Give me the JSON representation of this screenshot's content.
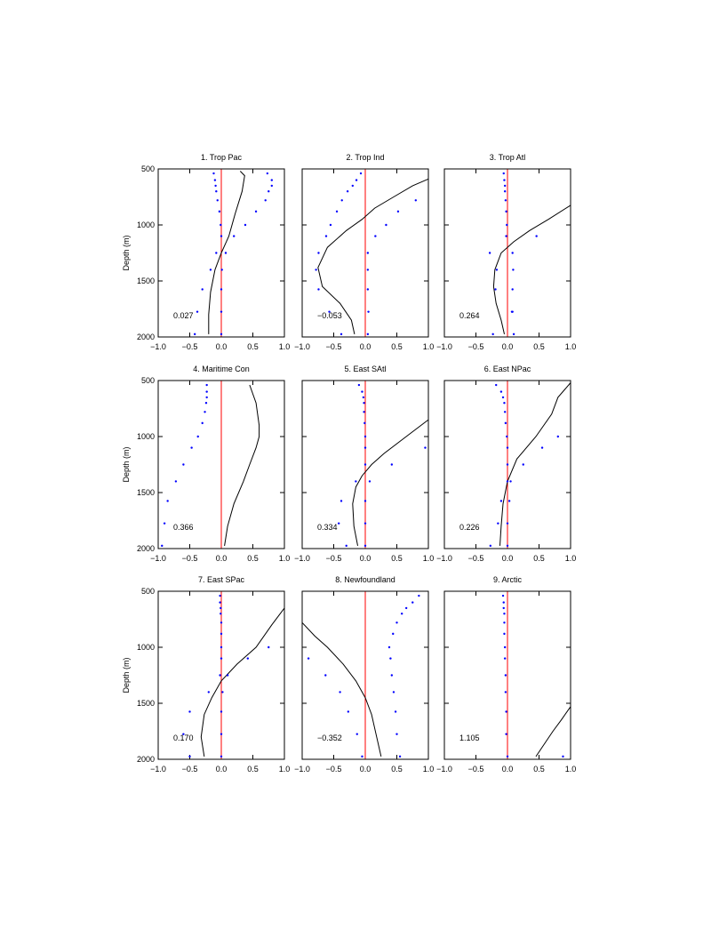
{
  "chart_data": [
    {
      "type": "line",
      "title": "1. Trop Pac",
      "annotation": "0.027",
      "ylabel": "Depth (m)",
      "show_ytick_labels": true,
      "xlim": [
        -1,
        1
      ],
      "xticks": [
        {
          "value": -1,
          "label": "−1.0"
        },
        {
          "value": -0.5,
          "label": "−0.5"
        },
        {
          "value": 0,
          "label": "0.0"
        },
        {
          "value": 0.5,
          "label": "0.5"
        },
        {
          "value": 1,
          "label": "1.0"
        }
      ],
      "ylim": [
        500,
        2000
      ],
      "yticks": [
        500,
        1000,
        1500,
        2000
      ],
      "y_inverted": true,
      "vline": {
        "value": 0,
        "color": "#ff0000"
      },
      "series": [
        {
          "style": "line",
          "color": "#000000",
          "x": [
            0.3,
            0.37,
            0.33,
            0.22,
            0.12,
            0.0,
            -0.1,
            -0.17,
            -0.2,
            -0.2
          ],
          "y": [
            520,
            560,
            700,
            900,
            1100,
            1250,
            1400,
            1600,
            1800,
            1975
          ]
        },
        {
          "style": "dots",
          "color": "#0000ff",
          "x": [
            -0.12,
            -0.1,
            -0.09,
            -0.08,
            -0.06,
            -0.03,
            -0.01,
            0,
            -0.08,
            -0.17,
            -0.3,
            -0.38,
            -0.42
          ],
          "y": [
            540,
            600,
            650,
            700,
            780,
            880,
            1000,
            1100,
            1250,
            1400,
            1575,
            1775,
            1975
          ]
        },
        {
          "style": "dots",
          "color": "#0000ff",
          "x": [
            0.73,
            0.8,
            0.8,
            0.75,
            0.7,
            0.55,
            0.38,
            0.2,
            0.07,
            0.01,
            0,
            0,
            0
          ],
          "y": [
            540,
            600,
            650,
            700,
            780,
            880,
            1000,
            1100,
            1250,
            1400,
            1575,
            1775,
            1975
          ]
        }
      ]
    },
    {
      "type": "line",
      "title": "2. Trop Ind",
      "annotation": "−0.053",
      "show_ytick_labels": false,
      "xlim": [
        -1,
        1
      ],
      "xticks": [
        {
          "value": -1,
          "label": "−1.0"
        },
        {
          "value": -0.5,
          "label": "−0.5"
        },
        {
          "value": 0,
          "label": "0.0"
        },
        {
          "value": 0.5,
          "label": "0.5"
        },
        {
          "value": 1,
          "label": "1.0"
        }
      ],
      "ylim": [
        500,
        2000
      ],
      "yticks": [
        500,
        1000,
        1500,
        2000
      ],
      "y_inverted": true,
      "vline": {
        "value": 0,
        "color": "#ff0000"
      },
      "series": [
        {
          "style": "line",
          "color": "#000000",
          "x": [
            1.0,
            0.75,
            0.45,
            0.15,
            -0.05,
            -0.3,
            -0.6,
            -0.75,
            -0.68,
            -0.4,
            -0.22,
            -0.17
          ],
          "y": [
            590,
            650,
            750,
            850,
            950,
            1050,
            1200,
            1380,
            1550,
            1700,
            1850,
            1975
          ]
        },
        {
          "style": "dots",
          "color": "#0000ff",
          "x": [
            -0.07,
            -0.14,
            -0.2,
            -0.28,
            -0.37,
            -0.45,
            -0.55,
            -0.62,
            -0.74,
            -0.78,
            -0.74,
            -0.57,
            -0.38
          ],
          "y": [
            540,
            600,
            650,
            700,
            780,
            880,
            1000,
            1100,
            1250,
            1400,
            1575,
            1775,
            1975
          ]
        },
        {
          "style": "dots",
          "color": "#0000ff",
          "x": [
            0.8,
            0.52,
            0.33,
            0.16,
            0.04,
            0.04,
            0.04,
            0.05,
            0.04
          ],
          "y": [
            780,
            880,
            1000,
            1100,
            1250,
            1400,
            1575,
            1775,
            1975
          ]
        }
      ]
    },
    {
      "type": "line",
      "title": "3. Trop Atl",
      "annotation": "0.264",
      "show_ytick_labels": false,
      "xlim": [
        -1,
        1
      ],
      "xticks": [
        {
          "value": -1,
          "label": "−1.0"
        },
        {
          "value": -0.5,
          "label": "−0.5"
        },
        {
          "value": 0,
          "label": "0.0"
        },
        {
          "value": 0.5,
          "label": "0.5"
        },
        {
          "value": 1,
          "label": "1.0"
        }
      ],
      "ylim": [
        500,
        2000
      ],
      "yticks": [
        500,
        1000,
        1500,
        2000
      ],
      "y_inverted": true,
      "vline": {
        "value": 0,
        "color": "#ff0000"
      },
      "series": [
        {
          "style": "line",
          "color": "#000000",
          "x": [
            1.0,
            0.65,
            0.35,
            0.1,
            -0.1,
            -0.2,
            -0.22,
            -0.18,
            -0.1,
            -0.05
          ],
          "y": [
            825,
            950,
            1050,
            1150,
            1250,
            1400,
            1550,
            1700,
            1850,
            1975
          ]
        },
        {
          "style": "dots",
          "color": "#0000ff",
          "x": [
            -0.06,
            -0.05,
            -0.04,
            -0.04,
            -0.03,
            -0.02,
            -0.01,
            -0.02,
            -0.28,
            -0.17,
            -0.19,
            0.07,
            -0.23
          ],
          "y": [
            540,
            600,
            650,
            700,
            780,
            880,
            1000,
            1100,
            1250,
            1400,
            1575,
            1775,
            1975
          ]
        },
        {
          "style": "dots",
          "color": "#0000ff",
          "x": [
            0.46,
            0.08,
            0.09,
            0.08,
            0.08,
            0.1
          ],
          "y": [
            1100,
            1250,
            1400,
            1575,
            1775,
            1975
          ]
        }
      ]
    },
    {
      "type": "line",
      "title": "4. Maritime Con",
      "annotation": "0.366",
      "ylabel": "Depth (m)",
      "show_ytick_labels": true,
      "xlim": [
        -1,
        1
      ],
      "xticks": [
        {
          "value": -1,
          "label": "−1.0"
        },
        {
          "value": -0.5,
          "label": "−0.5"
        },
        {
          "value": 0,
          "label": "0.0"
        },
        {
          "value": 0.5,
          "label": "0.5"
        },
        {
          "value": 1,
          "label": "1.0"
        }
      ],
      "ylim": [
        500,
        2000
      ],
      "yticks": [
        500,
        1000,
        1500,
        2000
      ],
      "y_inverted": true,
      "vline": {
        "value": 0,
        "color": "#ff0000"
      },
      "series": [
        {
          "style": "line",
          "color": "#000000",
          "x": [
            0.45,
            0.55,
            0.6,
            0.6,
            0.55,
            0.45,
            0.35,
            0.2,
            0.1,
            0.05
          ],
          "y": [
            540,
            700,
            900,
            1000,
            1100,
            1250,
            1400,
            1600,
            1800,
            1975
          ]
        },
        {
          "style": "dots",
          "color": "#0000ff",
          "x": [
            -0.23,
            -0.23,
            -0.23,
            -0.24,
            -0.26,
            -0.3,
            -0.37,
            -0.47,
            -0.6,
            -0.72,
            -0.85,
            -0.9,
            -0.94
          ],
          "y": [
            540,
            600,
            650,
            700,
            780,
            880,
            1000,
            1100,
            1250,
            1400,
            1575,
            1775,
            1975
          ]
        }
      ]
    },
    {
      "type": "line",
      "title": "5. East SAtl",
      "annotation": "0.334",
      "show_ytick_labels": false,
      "xlim": [
        -1,
        1
      ],
      "xticks": [
        {
          "value": -1,
          "label": "−1.0"
        },
        {
          "value": -0.5,
          "label": "−0.5"
        },
        {
          "value": 0,
          "label": "0.0"
        },
        {
          "value": 0.5,
          "label": "0.5"
        },
        {
          "value": 1,
          "label": "1.0"
        }
      ],
      "ylim": [
        500,
        2000
      ],
      "yticks": [
        500,
        1000,
        1500,
        2000
      ],
      "y_inverted": true,
      "vline": {
        "value": 0,
        "color": "#ff0000"
      },
      "series": [
        {
          "style": "line",
          "color": "#000000",
          "x": [
            1.0,
            0.65,
            0.3,
            0.1,
            -0.05,
            -0.15,
            -0.2,
            -0.18,
            -0.12
          ],
          "y": [
            850,
            1000,
            1150,
            1250,
            1350,
            1450,
            1600,
            1800,
            1975
          ]
        },
        {
          "style": "dots",
          "color": "#0000ff",
          "x": [
            -0.1,
            -0.05,
            -0.03,
            -0.02,
            -0.02,
            -0.01,
            0,
            0,
            0,
            -0.15,
            -0.38,
            -0.42,
            -0.3
          ],
          "y": [
            540,
            600,
            650,
            700,
            780,
            880,
            1000,
            1100,
            1250,
            1400,
            1575,
            1775,
            1975
          ]
        },
        {
          "style": "dots",
          "color": "#0000ff",
          "x": [
            0.95,
            0.42,
            0.07,
            0,
            0,
            0
          ],
          "y": [
            1100,
            1250,
            1400,
            1575,
            1775,
            1975
          ]
        }
      ]
    },
    {
      "type": "line",
      "title": "6. East NPac",
      "annotation": "0.226",
      "show_ytick_labels": false,
      "xlim": [
        -1,
        1
      ],
      "xticks": [
        {
          "value": -1,
          "label": "−1.0"
        },
        {
          "value": -0.5,
          "label": "−0.5"
        },
        {
          "value": 0,
          "label": "0.0"
        },
        {
          "value": 0.5,
          "label": "0.5"
        },
        {
          "value": 1,
          "label": "1.0"
        }
      ],
      "ylim": [
        500,
        2000
      ],
      "yticks": [
        500,
        1000,
        1500,
        2000
      ],
      "y_inverted": true,
      "vline": {
        "value": 0,
        "color": "#ff0000"
      },
      "series": [
        {
          "style": "line",
          "color": "#000000",
          "x": [
            1.0,
            0.8,
            0.7,
            0.45,
            0.15,
            0.0,
            -0.07,
            -0.1,
            -0.12
          ],
          "y": [
            520,
            650,
            800,
            1000,
            1200,
            1400,
            1600,
            1800,
            1975
          ]
        },
        {
          "style": "dots",
          "color": "#0000ff",
          "x": [
            -0.18,
            -0.1,
            -0.07,
            -0.05,
            -0.04,
            -0.03,
            -0.01,
            0,
            0,
            0,
            -0.1,
            -0.15,
            -0.27
          ],
          "y": [
            540,
            600,
            650,
            700,
            780,
            880,
            1000,
            1100,
            1250,
            1400,
            1575,
            1775,
            1975
          ]
        },
        {
          "style": "dots",
          "color": "#0000ff",
          "x": [
            0.8,
            0.55,
            0.25,
            0.05,
            0.03,
            0,
            0
          ],
          "y": [
            1000,
            1100,
            1250,
            1400,
            1575,
            1775,
            1975
          ]
        }
      ]
    },
    {
      "type": "line",
      "title": "7. East SPac",
      "annotation": "0.170",
      "ylabel": "Depth (m)",
      "show_ytick_labels": true,
      "xlim": [
        -1,
        1
      ],
      "xticks": [
        {
          "value": -1,
          "label": "−1.0"
        },
        {
          "value": -0.5,
          "label": "−0.5"
        },
        {
          "value": 0,
          "label": "0.0"
        },
        {
          "value": 0.5,
          "label": "0.5"
        },
        {
          "value": 1,
          "label": "1.0"
        }
      ],
      "ylim": [
        500,
        2000
      ],
      "yticks": [
        500,
        1000,
        1500,
        2000
      ],
      "y_inverted": true,
      "vline": {
        "value": 0,
        "color": "#ff0000"
      },
      "series": [
        {
          "style": "line",
          "color": "#000000",
          "x": [
            1.0,
            0.8,
            0.55,
            0.25,
            0.0,
            -0.15,
            -0.27,
            -0.32,
            -0.27
          ],
          "y": [
            650,
            800,
            1000,
            1150,
            1300,
            1450,
            1600,
            1800,
            1975
          ]
        },
        {
          "style": "dots",
          "color": "#0000ff",
          "x": [
            -0.02,
            -0.02,
            -0.01,
            -0.01,
            0,
            0,
            0,
            0,
            -0.02,
            -0.2,
            -0.5,
            -0.6,
            -0.5
          ],
          "y": [
            540,
            600,
            650,
            700,
            780,
            880,
            1000,
            1100,
            1250,
            1400,
            1575,
            1775,
            1975
          ]
        },
        {
          "style": "dots",
          "color": "#0000ff",
          "x": [
            0.75,
            0.42,
            0.1,
            0.02,
            0,
            0,
            0
          ],
          "y": [
            1000,
            1100,
            1250,
            1400,
            1575,
            1775,
            1975
          ]
        }
      ]
    },
    {
      "type": "line",
      "title": "8. Newfoundland",
      "annotation": "−0.352",
      "show_ytick_labels": false,
      "xlim": [
        -1,
        1
      ],
      "xticks": [
        {
          "value": -1,
          "label": "−1.0"
        },
        {
          "value": -0.5,
          "label": "−0.5"
        },
        {
          "value": 0,
          "label": "0.0"
        },
        {
          "value": 0.5,
          "label": "0.5"
        },
        {
          "value": 1,
          "label": "1.0"
        }
      ],
      "ylim": [
        500,
        2000
      ],
      "yticks": [
        500,
        1000,
        1500,
        2000
      ],
      "y_inverted": true,
      "vline": {
        "value": 0,
        "color": "#ff0000"
      },
      "series": [
        {
          "style": "line",
          "color": "#000000",
          "x": [
            -1.0,
            -0.8,
            -0.6,
            -0.35,
            -0.15,
            0.0,
            0.1,
            0.18,
            0.25
          ],
          "y": [
            780,
            900,
            1000,
            1150,
            1300,
            1450,
            1600,
            1800,
            1975
          ]
        },
        {
          "style": "dots",
          "color": "#0000ff",
          "x": [
            0.85,
            0.75,
            0.65,
            0.58,
            0.5,
            0.44,
            0.38,
            0.4,
            0.42,
            0.45,
            0.48,
            0.5,
            0.55
          ],
          "y": [
            540,
            600,
            650,
            700,
            780,
            880,
            1000,
            1100,
            1250,
            1400,
            1575,
            1775,
            1975
          ]
        },
        {
          "style": "dots",
          "color": "#0000ff",
          "x": [
            -0.9,
            -0.63,
            -0.4,
            -0.27,
            -0.13,
            -0.05
          ],
          "y": [
            1100,
            1250,
            1400,
            1575,
            1775,
            1975
          ]
        }
      ]
    },
    {
      "type": "line",
      "title": "9. Arctic",
      "annotation": "1.105",
      "show_ytick_labels": false,
      "xlim": [
        -1,
        1
      ],
      "xticks": [
        {
          "value": -1,
          "label": "−1.0"
        },
        {
          "value": -0.5,
          "label": "−0.5"
        },
        {
          "value": 0,
          "label": "0.0"
        },
        {
          "value": 0.5,
          "label": "0.5"
        },
        {
          "value": 1,
          "label": "1.0"
        }
      ],
      "ylim": [
        500,
        2000
      ],
      "yticks": [
        500,
        1000,
        1500,
        2000
      ],
      "y_inverted": true,
      "vline": {
        "value": 0,
        "color": "#ff0000"
      },
      "series": [
        {
          "style": "line",
          "color": "#000000",
          "x": [
            1.0,
            0.85,
            0.72,
            0.6,
            0.45
          ],
          "y": [
            1530,
            1650,
            1750,
            1850,
            1975
          ]
        },
        {
          "style": "dots",
          "color": "#0000ff",
          "x": [
            -0.07,
            -0.06,
            -0.06,
            -0.05,
            -0.05,
            -0.05,
            -0.04,
            -0.04,
            -0.03,
            -0.03,
            -0.02,
            -0.02,
            0
          ],
          "y": [
            540,
            600,
            650,
            700,
            780,
            880,
            1000,
            1100,
            1250,
            1400,
            1575,
            1775,
            1975
          ]
        },
        {
          "style": "dots",
          "color": "#0000ff",
          "x": [
            0.88
          ],
          "y": [
            1975
          ]
        }
      ]
    }
  ]
}
